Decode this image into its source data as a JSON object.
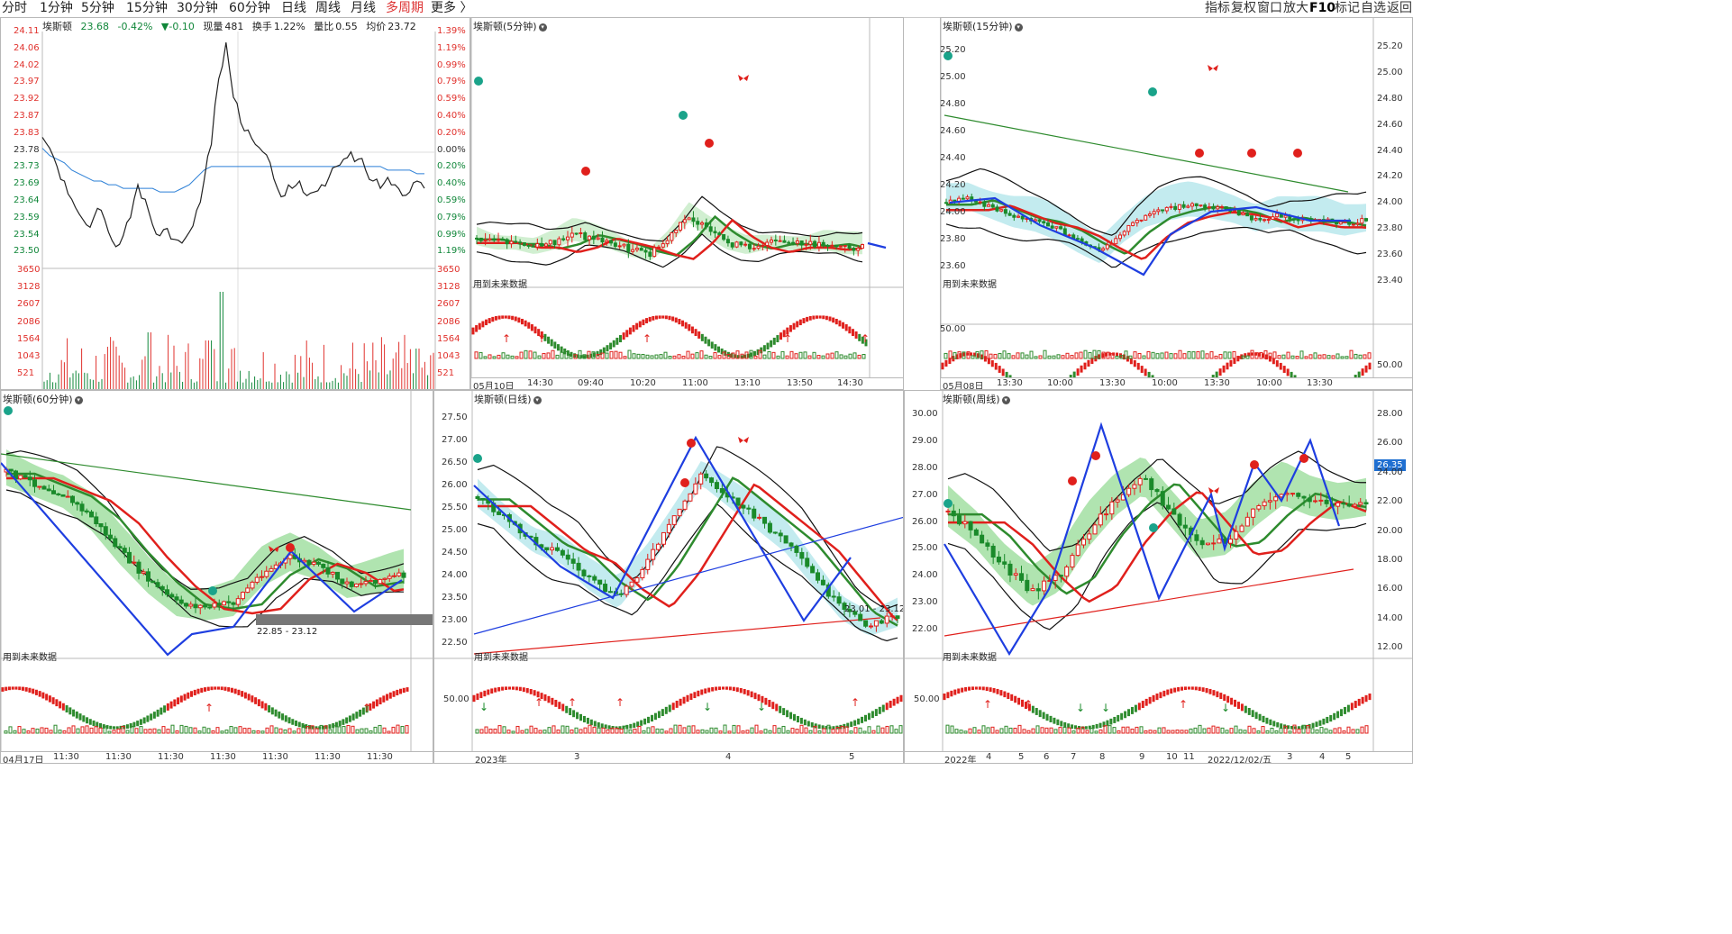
{
  "periods": [
    "分时",
    "1分钟",
    "5分钟",
    "15分钟",
    "30分钟",
    "60分钟",
    "日线",
    "周线",
    "月线",
    "多周期",
    "更多 〉"
  ],
  "active_period": "多周期",
  "toolbar": [
    "指标",
    "复权",
    "窗口",
    "放大",
    "F10",
    "标记",
    "自选",
    "返回"
  ],
  "intraday": {
    "stock": "埃斯顿",
    "price": "23.68",
    "change_pct": "-0.42%",
    "change": "▼-0.10",
    "volume_label": "现量",
    "volume": "481",
    "turnover_label": "换手",
    "turnover": "1.22%",
    "ratio_label": "量比",
    "ratio": "0.55",
    "avg_label": "均价",
    "avg": "23.72",
    "price_ticks": [
      "24.11",
      "24.06",
      "24.02",
      "23.97",
      "23.92",
      "23.87",
      "23.83",
      "23.78",
      "23.73",
      "23.69",
      "23.64",
      "23.59",
      "23.54",
      "23.50"
    ],
    "pct_ticks": [
      "1.39%",
      "1.19%",
      "0.99%",
      "0.79%",
      "0.59%",
      "0.40%",
      "0.20%",
      "0.00%",
      "0.20%",
      "0.40%",
      "0.59%",
      "0.79%",
      "0.99%",
      "1.19%"
    ],
    "vol_ticks": [
      "3650",
      "3128",
      "2607",
      "2086",
      "1564",
      "1043",
      "521"
    ],
    "price_series": [
      23.82,
      23.79,
      23.74,
      23.7,
      23.65,
      23.61,
      23.58,
      23.6,
      23.62,
      23.56,
      23.52,
      23.55,
      23.6,
      23.69,
      23.65,
      23.58,
      23.55,
      23.57,
      23.54,
      23.53,
      23.56,
      23.62,
      23.7,
      23.8,
      23.98,
      24.08,
      23.93,
      23.86,
      23.84,
      23.8,
      23.78,
      23.75,
      23.68,
      23.66,
      23.68,
      23.7,
      23.66,
      23.67,
      23.69,
      23.71,
      23.74,
      23.76,
      23.78,
      23.76,
      23.73,
      23.7,
      23.68,
      23.71,
      23.69,
      23.66,
      23.67,
      23.7,
      23.68
    ],
    "avg_series": [
      23.79,
      23.77,
      23.76,
      23.75,
      23.73,
      23.72,
      23.71,
      23.7,
      23.7,
      23.69,
      23.69,
      23.68,
      23.68,
      23.68,
      23.68,
      23.68,
      23.67,
      23.67,
      23.67,
      23.68,
      23.69,
      23.71,
      23.73,
      23.74,
      23.74,
      23.74,
      23.74,
      23.74,
      23.74,
      23.74,
      23.74,
      23.74,
      23.74,
      23.74,
      23.74,
      23.74,
      23.74,
      23.74,
      23.74,
      23.74,
      23.74,
      23.74,
      23.74,
      23.74,
      23.74,
      23.74,
      23.74,
      23.73,
      23.73,
      23.73,
      23.73,
      23.72,
      23.72
    ]
  },
  "panels": [
    {
      "title": "埃斯顿(5分钟)",
      "y_ticks": [],
      "sub_ticks": [],
      "note": "用到未来数据",
      "dates": [
        "05月10日",
        "14:30",
        "09:40",
        "10:20",
        "11:00",
        "13:10",
        "13:50",
        "14:30"
      ]
    },
    {
      "title": "埃斯顿(15分钟)",
      "y_ticks": [
        "25.20",
        "25.00",
        "24.80",
        "24.60",
        "24.40",
        "24.20",
        "24.00",
        "23.80",
        "23.60"
      ],
      "right_ticks": [
        "25.20",
        "25.00",
        "24.80",
        "24.60",
        "24.40",
        "24.20",
        "24.00",
        "23.80",
        "23.60",
        "23.40"
      ],
      "sub_ticks": [
        "50.00"
      ],
      "note": "用到未来数据",
      "dates": [
        "05月08日",
        "13:30",
        "10:00",
        "13:30",
        "10:00",
        "13:30",
        "10:00",
        "13:30"
      ]
    },
    {
      "title": "埃斯顿(60分钟)",
      "y_ticks": [],
      "note": "用到未来数据",
      "range_label": "22.85 - 23.12",
      "dates": [
        "04月17日",
        "11:30",
        "11:30",
        "11:30",
        "11:30",
        "11:30",
        "11:30",
        "11:30"
      ]
    },
    {
      "title": "埃斯顿(日线)",
      "y_ticks": [
        "27.50",
        "27.00",
        "26.50",
        "26.00",
        "25.50",
        "25.00",
        "24.50",
        "24.00",
        "23.50",
        "23.00",
        "22.50"
      ],
      "sub_ticks": [
        "50.00"
      ],
      "note": "用到未来数据",
      "range_label": "23.01 - 23.12",
      "dates": [
        "2023年",
        "3",
        "4",
        "5"
      ]
    },
    {
      "title": "埃斯顿(周线)",
      "y_ticks": [
        "30.00",
        "29.00",
        "28.00",
        "27.00",
        "26.00",
        "25.00",
        "24.00",
        "23.00",
        "22.00"
      ],
      "right_ticks": [
        "28.00",
        "26.00",
        "24.00",
        "22.00",
        "20.00",
        "18.00",
        "16.00",
        "14.00",
        "12.00"
      ],
      "sub_ticks": [
        "50.00"
      ],
      "note": "用到未来数据",
      "price_box": "26.35",
      "dates": [
        "2022年",
        "4",
        "5",
        "6",
        "7",
        "8",
        "9",
        "10",
        "11",
        "2022/12/02/五",
        "3",
        "4",
        "5"
      ]
    }
  ]
}
